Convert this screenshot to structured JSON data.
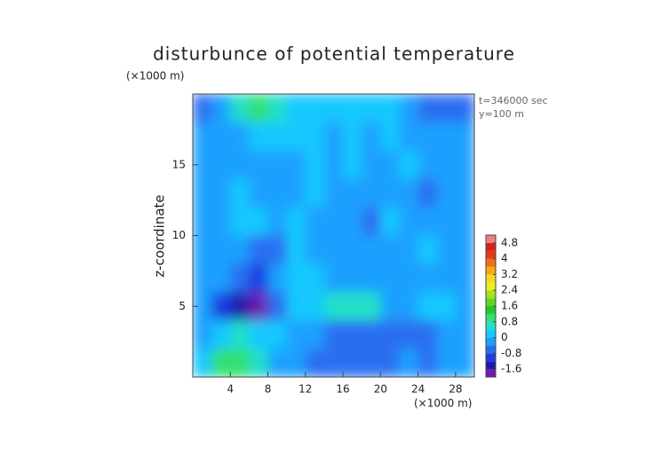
{
  "chart_data": {
    "type": "contour",
    "title": "disturbunce of potential temperature",
    "y_unit_label": "(×1000 m)",
    "x_unit_label": "(×1000 m)",
    "ylabel": "z-coordinate",
    "annotations": [
      "t=346000 sec",
      "y=100 m"
    ],
    "xlim": [
      0,
      30
    ],
    "xticks": [
      4,
      8,
      12,
      16,
      20,
      24,
      28
    ],
    "ylim": [
      0,
      20
    ],
    "yticks": [
      5,
      10,
      15
    ],
    "x": [
      1,
      3,
      5,
      7,
      9,
      11,
      13,
      15,
      17,
      19,
      21,
      23,
      25,
      27,
      29
    ],
    "y": [
      19,
      17,
      15,
      13,
      11,
      9,
      7,
      5,
      3,
      1
    ],
    "z": [
      [
        -0.6,
        -0.3,
        0.6,
        0.8,
        0.5,
        0.1,
        0.2,
        0.1,
        0.2,
        0.3,
        0.1,
        -0.2,
        -0.5,
        -0.6,
        -0.6
      ],
      [
        -0.2,
        -0.2,
        -0.1,
        0.1,
        0.3,
        0.3,
        0.1,
        -0.3,
        0.2,
        -0.2,
        0.2,
        -0.2,
        -0.3,
        -0.3,
        -0.3
      ],
      [
        -0.2,
        -0.3,
        -0.2,
        -0.2,
        -0.3,
        -0.1,
        0.2,
        -0.3,
        0.1,
        -0.3,
        -0.3,
        0.1,
        -0.2,
        -0.4,
        -0.3
      ],
      [
        -0.3,
        -0.2,
        0.1,
        -0.2,
        -0.1,
        -0.3,
        0.1,
        -0.2,
        -0.1,
        -0.4,
        -0.1,
        -0.3,
        -0.5,
        -0.2,
        -0.3
      ],
      [
        -0.2,
        -0.3,
        0.1,
        0.1,
        -0.2,
        0.1,
        -0.1,
        -0.3,
        -0.2,
        -0.5,
        0.1,
        -0.2,
        -0.4,
        -0.3,
        -0.2
      ],
      [
        -0.3,
        -0.2,
        -0.2,
        -0.6,
        -0.5,
        0.1,
        -0.2,
        -0.3,
        -0.3,
        -0.4,
        -0.2,
        -0.1,
        0.1,
        -0.3,
        -0.2
      ],
      [
        -0.2,
        -0.3,
        -0.8,
        -1.2,
        -0.3,
        0.2,
        0.1,
        -0.2,
        -0.1,
        -0.3,
        -0.1,
        -0.2,
        -0.3,
        -0.2,
        -0.3
      ],
      [
        -0.3,
        -1.2,
        -1.5,
        -1.8,
        -0.6,
        0.2,
        0.1,
        0.4,
        0.6,
        0.4,
        -0.4,
        -0.3,
        0.3,
        0.2,
        -0.2
      ],
      [
        -0.2,
        0.3,
        0.5,
        0.3,
        0.1,
        -0.3,
        -0.4,
        -0.5,
        -0.6,
        -0.5,
        -0.5,
        -0.6,
        -0.5,
        -0.4,
        -0.3
      ],
      [
        0.2,
        0.9,
        1.0,
        0.6,
        -0.2,
        -0.4,
        -0.6,
        -0.5,
        -0.5,
        -0.6,
        -0.5,
        -0.4,
        -0.5,
        -0.3,
        -0.3
      ]
    ],
    "levels": [
      -2,
      -1.6,
      -1.2,
      -0.8,
      -0.4,
      0,
      0.4,
      0.8,
      1.2,
      1.6,
      2,
      2.4,
      2.8,
      3.2,
      3.6,
      4,
      4.4,
      4.8,
      5.2
    ],
    "colors": [
      "#6a1fb0",
      "#1a1aa8",
      "#1e3ee0",
      "#2a6ef0",
      "#1aa0ff",
      "#18c8ff",
      "#20e0c8",
      "#30e070",
      "#20c830",
      "#60d820",
      "#a8e020",
      "#e8f020",
      "#f8d820",
      "#f8a818",
      "#f07010",
      "#e83818",
      "#d82020",
      "#f08080"
    ],
    "colorbar_ticks": [
      -1.6,
      -0.8,
      0,
      0.8,
      1.6,
      2.4,
      3.2,
      4,
      4.8
    ]
  }
}
